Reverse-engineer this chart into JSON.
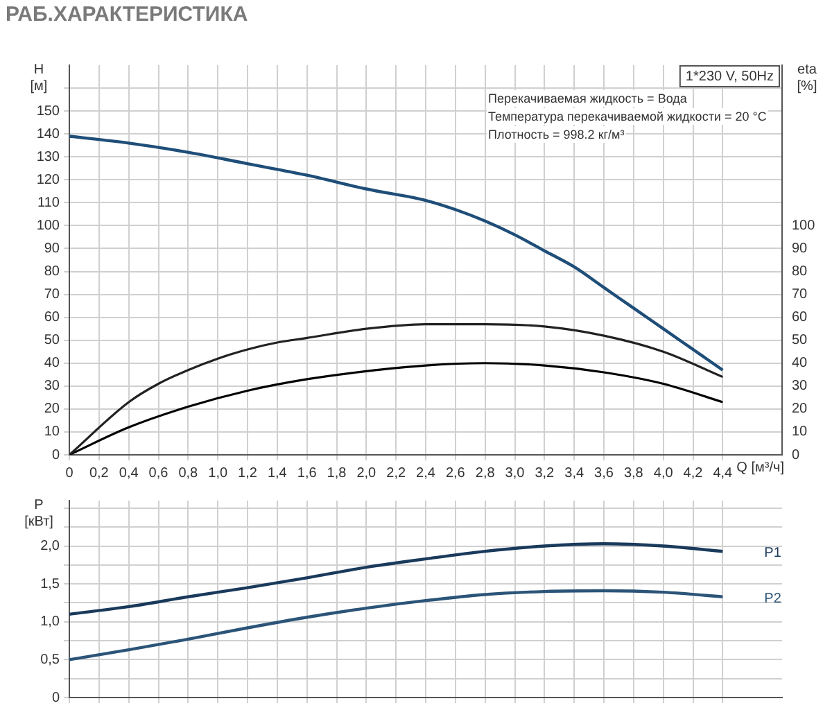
{
  "chart_data": [
    {
      "type": "line",
      "title": "РАБ.ХАРАКТЕРИСТИКА",
      "xlabel": "Q [м³/ч]",
      "ylabel": "H [м]",
      "y2label": "eta [%]",
      "annotations": [
        "1*230 V, 50Hz",
        "Перекачиваемая жидкость = Вода",
        "Температура перекачиваемой жидкости = 20 °C",
        "Плотность = 998.2 кг/м³"
      ],
      "xlim": [
        0,
        4.8
      ],
      "xticks": [
        0,
        {
          "value": 0.2,
          "label": "0,2"
        },
        {
          "value": 0.4,
          "label": "0,4"
        },
        {
          "value": 0.6,
          "label": "0,6"
        },
        {
          "value": 0.8,
          "label": "0,8"
        },
        {
          "value": 1,
          "label": "1,0"
        },
        {
          "value": 1.2,
          "label": "1,2"
        },
        {
          "value": 1.4,
          "label": "1,4"
        },
        {
          "value": 1.6,
          "label": "1,6"
        },
        {
          "value": 1.8,
          "label": "1,8"
        },
        {
          "value": 2,
          "label": "2,0"
        },
        {
          "value": 2.2,
          "label": "2,2"
        },
        {
          "value": 2.4,
          "label": "2,4"
        },
        {
          "value": 2.6,
          "label": "2,6"
        },
        {
          "value": 2.8,
          "label": "2,8"
        },
        {
          "value": 3,
          "label": "3,0"
        },
        {
          "value": 3.2,
          "label": "3,2"
        },
        {
          "value": 3.4,
          "label": "3,4"
        },
        {
          "value": 3.6,
          "label": "3,6"
        },
        {
          "value": 3.8,
          "label": "3,8"
        },
        {
          "value": 4,
          "label": "4,0"
        },
        {
          "value": 4.2,
          "label": "4,2"
        },
        {
          "value": 4.4,
          "label": "4,4"
        }
      ],
      "ylim": [
        0,
        170
      ],
      "yticks": [
        0,
        10,
        20,
        30,
        40,
        50,
        60,
        70,
        80,
        90,
        100,
        110,
        120,
        130,
        140,
        150,
        {
          "value": 160,
          "label": null
        }
      ],
      "y2lim": [
        0,
        170
      ],
      "y2ticks": [
        0,
        10,
        20,
        30,
        40,
        50,
        60,
        70,
        80,
        90,
        100
      ],
      "grid": true,
      "legend": false,
      "marker": "none",
      "line_style": "solid",
      "series": [
        {
          "color": "#1f4e79",
          "x": [
            0,
            0.4,
            0.8,
            1.2,
            1.6,
            2.0,
            2.4,
            2.6,
            2.8,
            3.0,
            3.2,
            3.4,
            3.6,
            3.8,
            4.0,
            4.2,
            4.4
          ],
          "values": [
            139,
            136,
            132,
            127,
            122,
            116,
            111,
            107,
            102,
            96,
            89,
            82,
            73,
            64,
            55,
            46,
            37
          ]
        },
        {
          "color": "#222222",
          "axis": "y2",
          "x": [
            0,
            0.4,
            0.6,
            0.8,
            1.0,
            1.2,
            1.4,
            1.6,
            2.0,
            2.4,
            2.8,
            3.2,
            3.6,
            4.0,
            4.4
          ],
          "values": [
            0,
            23,
            31,
            37,
            42,
            46,
            49,
            51,
            55,
            57,
            57,
            56,
            52,
            45,
            34
          ]
        },
        {
          "color": "#000000",
          "axis": "y2",
          "x": [
            0,
            0.4,
            0.8,
            1.2,
            1.6,
            2.0,
            2.4,
            2.8,
            3.2,
            3.6,
            4.0,
            4.4
          ],
          "values": [
            0,
            12,
            21,
            28,
            33,
            36.5,
            39,
            40,
            39,
            36,
            31,
            23
          ]
        }
      ]
    },
    {
      "type": "line",
      "ylabel": "P [кВт]",
      "xlim": [
        0,
        4.8
      ],
      "xticks": [
        0,
        0.2,
        0.4,
        0.6,
        0.8,
        1,
        1.2,
        1.4,
        1.6,
        1.8,
        2,
        2.2,
        2.4,
        2.6,
        2.8,
        3,
        3.2,
        3.4,
        3.6,
        3.8,
        4,
        4.2,
        4.4
      ],
      "ylim": [
        0,
        2.6
      ],
      "yticks": [
        0,
        {
          "value": 0.25,
          "label": null
        },
        {
          "value": 0.5,
          "label": "0,5"
        },
        {
          "value": 0.75,
          "label": null
        },
        {
          "value": 1,
          "label": "1,0"
        },
        {
          "value": 1.25,
          "label": null
        },
        {
          "value": 1.5,
          "label": "1,5"
        },
        {
          "value": 1.75,
          "label": null
        },
        {
          "value": 2,
          "label": "2,0"
        },
        {
          "value": 2.25,
          "label": null
        },
        {
          "value": 2.5,
          "label": null
        }
      ],
      "tick_labels": "y",
      "grid": true,
      "legend": false,
      "marker": "none",
      "line_style": "solid",
      "series": [
        {
          "name": "P1",
          "color": "#1a3a5c",
          "x": [
            0,
            0.4,
            0.8,
            1.2,
            1.6,
            2.0,
            2.4,
            2.8,
            3.2,
            3.6,
            4.0,
            4.4
          ],
          "values": [
            1.1,
            1.2,
            1.33,
            1.45,
            1.58,
            1.72,
            1.83,
            1.93,
            2.0,
            2.03,
            2.0,
            1.93
          ]
        },
        {
          "name": "P2",
          "color": "#2b5478",
          "x": [
            0,
            0.4,
            0.8,
            1.2,
            1.6,
            2.0,
            2.4,
            2.8,
            3.2,
            3.6,
            4.0,
            4.4
          ],
          "values": [
            0.5,
            0.63,
            0.77,
            0.92,
            1.06,
            1.18,
            1.28,
            1.36,
            1.4,
            1.41,
            1.39,
            1.33
          ]
        }
      ]
    }
  ]
}
